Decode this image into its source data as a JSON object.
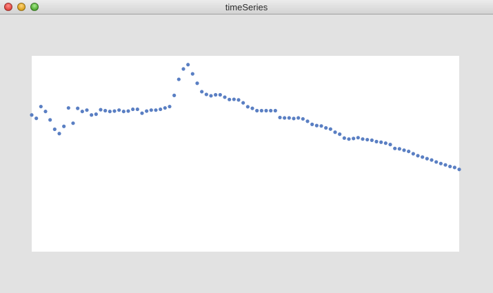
{
  "window": {
    "title": "timeSeries"
  },
  "colors": {
    "window_bg": "#e2e2e2",
    "plot_bg": "#ffffff",
    "point": "#5a7fc3"
  },
  "chart_data": {
    "type": "scatter",
    "title": "",
    "xlabel": "",
    "ylabel": "",
    "grid": false,
    "legend": "none",
    "x": [
      0,
      1,
      2,
      3,
      4,
      5,
      6,
      7,
      8,
      9,
      10,
      11,
      12,
      13,
      14,
      15,
      16,
      17,
      18,
      19,
      20,
      21,
      22,
      23,
      24,
      25,
      26,
      27,
      28,
      29,
      30,
      31,
      32,
      33,
      34,
      35,
      36,
      37,
      38,
      39,
      40,
      41,
      42,
      43,
      44,
      45,
      46,
      47,
      48,
      49,
      50,
      51,
      52,
      53,
      54,
      55,
      56,
      57,
      58,
      59,
      60,
      61,
      62,
      63,
      64,
      65,
      66,
      67,
      68,
      69,
      70,
      71,
      72,
      73,
      74,
      75,
      76,
      77,
      78,
      79,
      80,
      81,
      82,
      83,
      84,
      85,
      86,
      87,
      88,
      89,
      90,
      91,
      92,
      93
    ],
    "y": [
      0.698,
      0.681,
      0.741,
      0.716,
      0.673,
      0.625,
      0.603,
      0.64,
      0.734,
      0.656,
      0.732,
      0.716,
      0.723,
      0.698,
      0.702,
      0.725,
      0.72,
      0.716,
      0.718,
      0.723,
      0.716,
      0.718,
      0.727,
      0.727,
      0.707,
      0.718,
      0.723,
      0.723,
      0.727,
      0.734,
      0.741,
      0.798,
      0.88,
      0.933,
      0.955,
      0.908,
      0.86,
      0.817,
      0.803,
      0.796,
      0.801,
      0.801,
      0.789,
      0.777,
      0.778,
      0.775,
      0.76,
      0.74,
      0.732,
      0.72,
      0.72,
      0.72,
      0.72,
      0.72,
      0.685,
      0.683,
      0.683,
      0.68,
      0.683,
      0.678,
      0.666,
      0.65,
      0.644,
      0.642,
      0.632,
      0.626,
      0.61,
      0.6,
      0.58,
      0.575,
      0.578,
      0.582,
      0.575,
      0.572,
      0.569,
      0.562,
      0.559,
      0.554,
      0.547,
      0.527,
      0.525,
      0.518,
      0.512,
      0.5,
      0.49,
      0.483,
      0.475,
      0.468,
      0.458,
      0.45,
      0.443,
      0.435,
      0.43,
      0.42
    ],
    "xlim": [
      0,
      93
    ],
    "ylim": [
      0,
      1
    ]
  }
}
